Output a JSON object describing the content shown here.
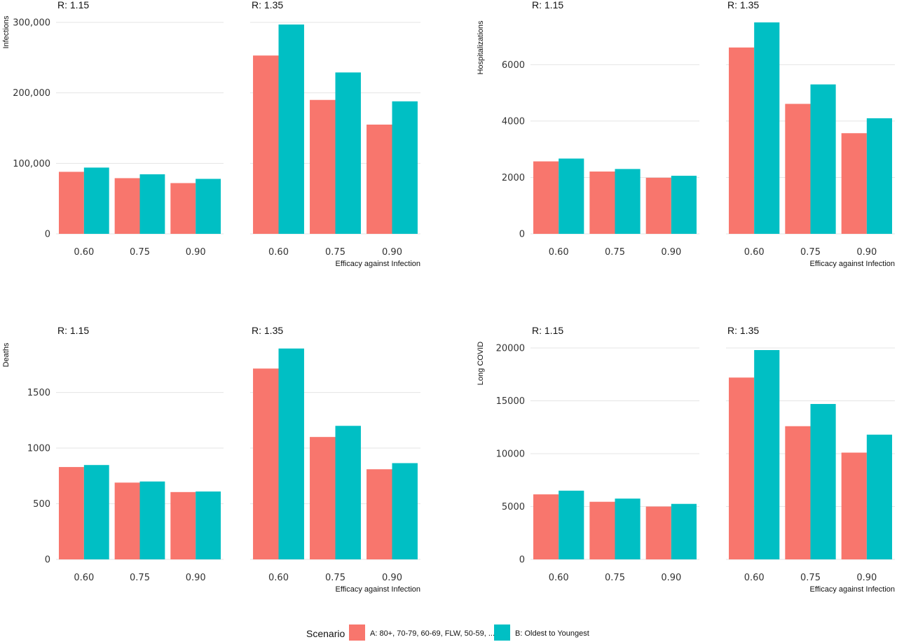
{
  "colors": {
    "A": "#F8766D",
    "B": "#00BFC4",
    "grid": "#e5e5e5"
  },
  "legend": {
    "title": "Scenario",
    "items": [
      {
        "key": "A",
        "label": "A: 80+, 70-79, 60-69, FLW, 50-59, ..."
      },
      {
        "key": "B",
        "label": "B: Oldest to Youngest"
      }
    ]
  },
  "chart_data": [
    {
      "type": "bar",
      "ylabel": "Infections",
      "xlabel": "Efficacy against Infection",
      "ylim": [
        0,
        300000
      ],
      "yticks": [
        0,
        100000,
        200000,
        300000
      ],
      "ytick_labels": [
        "0",
        "100,000",
        "200,000",
        "300,000"
      ],
      "categories": [
        "0.60",
        "0.75",
        "0.90"
      ],
      "facets": [
        {
          "title": "R: 1.15",
          "series": [
            {
              "name": "A: 80+, 70-79, 60-69, FLW, 50-59, ...",
              "values": [
                88000,
                79000,
                72000
              ]
            },
            {
              "name": "B: Oldest to Youngest",
              "values": [
                94000,
                84500,
                78000
              ]
            }
          ]
        },
        {
          "title": "R: 1.35",
          "series": [
            {
              "name": "A: 80+, 70-79, 60-69, FLW, 50-59, ...",
              "values": [
                253000,
                190000,
                155000
              ]
            },
            {
              "name": "B: Oldest to Youngest",
              "values": [
                297000,
                229000,
                188000
              ]
            }
          ]
        }
      ]
    },
    {
      "type": "bar",
      "ylabel": "Hospitalizations",
      "xlabel": "Efficacy against Infection",
      "ylim": [
        0,
        7500
      ],
      "yticks": [
        0,
        2000,
        4000,
        6000
      ],
      "ytick_labels": [
        "0",
        "2000",
        "4000",
        "6000"
      ],
      "categories": [
        "0.60",
        "0.75",
        "0.90"
      ],
      "facets": [
        {
          "title": "R: 1.15",
          "series": [
            {
              "name": "A: 80+, 70-79, 60-69, FLW, 50-59, ...",
              "values": [
                2570,
                2210,
                1990
              ]
            },
            {
              "name": "B: Oldest to Youngest",
              "values": [
                2670,
                2300,
                2060
              ]
            }
          ]
        },
        {
          "title": "R: 1.35",
          "series": [
            {
              "name": "A: 80+, 70-79, 60-69, FLW, 50-59, ...",
              "values": [
                6610,
                4610,
                3570
              ]
            },
            {
              "name": "B: Oldest to Youngest",
              "values": [
                7500,
                5300,
                4100
              ]
            }
          ]
        }
      ]
    },
    {
      "type": "bar",
      "ylabel": "Deaths",
      "xlabel": "Efficacy against Infection",
      "ylim": [
        0,
        1900
      ],
      "yticks": [
        0,
        500,
        1000,
        1500
      ],
      "ytick_labels": [
        "0",
        "500",
        "1000",
        "1500"
      ],
      "categories": [
        "0.60",
        "0.75",
        "0.90"
      ],
      "facets": [
        {
          "title": "R: 1.15",
          "series": [
            {
              "name": "A: 80+, 70-79, 60-69, FLW, 50-59, ...",
              "values": [
                830,
                690,
                605
              ]
            },
            {
              "name": "B: Oldest to Youngest",
              "values": [
                848,
                700,
                610
              ]
            }
          ]
        },
        {
          "title": "R: 1.35",
          "series": [
            {
              "name": "A: 80+, 70-79, 60-69, FLW, 50-59, ...",
              "values": [
                1715,
                1100,
                810
              ]
            },
            {
              "name": "B: Oldest to Youngest",
              "values": [
                1895,
                1200,
                865
              ]
            }
          ]
        }
      ]
    },
    {
      "type": "bar",
      "ylabel": "Long COVID",
      "xlabel": "Efficacy against Infection",
      "ylim": [
        0,
        20000
      ],
      "yticks": [
        0,
        5000,
        10000,
        15000,
        20000
      ],
      "ytick_labels": [
        "0",
        "5000",
        "10000",
        "15000",
        "20000"
      ],
      "categories": [
        "0.60",
        "0.75",
        "0.90"
      ],
      "facets": [
        {
          "title": "R: 1.15",
          "series": [
            {
              "name": "A: 80+, 70-79, 60-69, FLW, 50-59, ...",
              "values": [
                6150,
                5450,
                5000
              ]
            },
            {
              "name": "B: Oldest to Youngest",
              "values": [
                6500,
                5750,
                5250
              ]
            }
          ]
        },
        {
          "title": "R: 1.35",
          "series": [
            {
              "name": "A: 80+, 70-79, 60-69, FLW, 50-59, ...",
              "values": [
                17200,
                12600,
                10100
              ]
            },
            {
              "name": "B: Oldest to Youngest",
              "values": [
                19800,
                14700,
                11800
              ]
            }
          ]
        }
      ]
    }
  ]
}
